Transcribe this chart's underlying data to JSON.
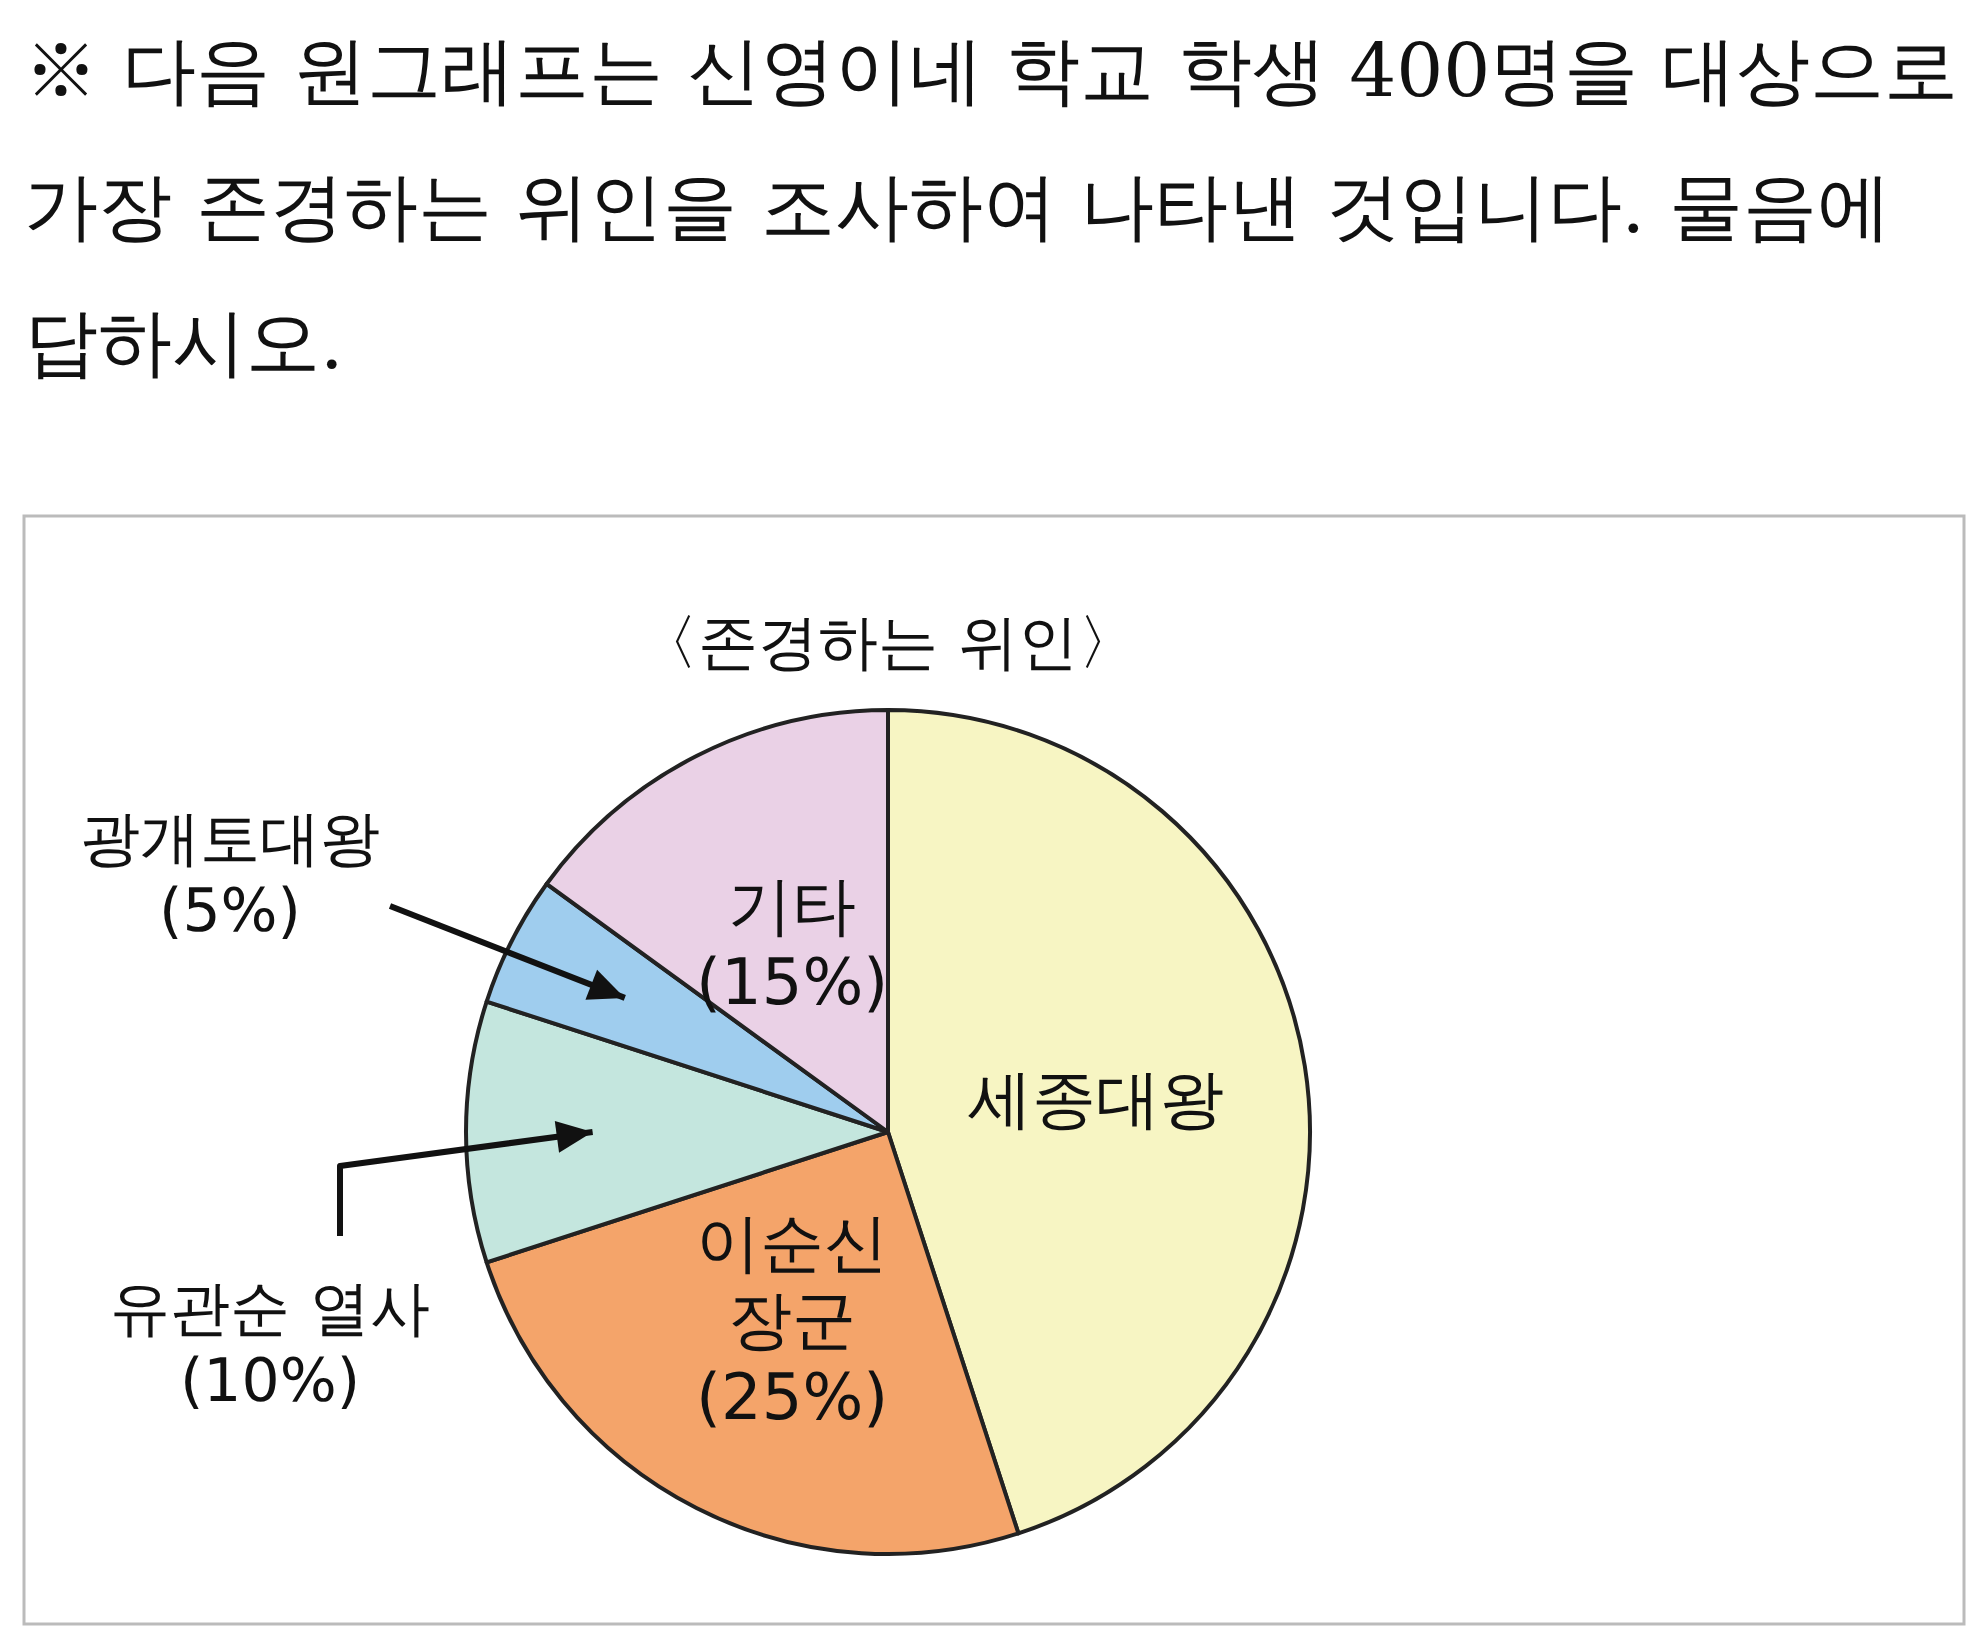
{
  "chart_data": {
    "type": "pie",
    "title": "〈존경하는 위인〉",
    "annotations": [
      "※ 다음 원그래프는 신영이네 학교 학생 400명을 대상으로 가장 존경하는 위인을 조사하여 나타낸 것입니다. 물음에 답하시오."
    ],
    "categories": [
      "세종대왕",
      "이순신 장군",
      "유관순 열사",
      "광개토대왕",
      "기타"
    ],
    "values": [
      45,
      25,
      10,
      5,
      15
    ],
    "value_labels": [
      null,
      "(25%)",
      "(10%)",
      "(5%)",
      "(15%)"
    ],
    "colors": [
      "#f7f5c3",
      "#f4a46a",
      "#c4e6de",
      "#9fcdee",
      "#ead1e6"
    ]
  }
}
